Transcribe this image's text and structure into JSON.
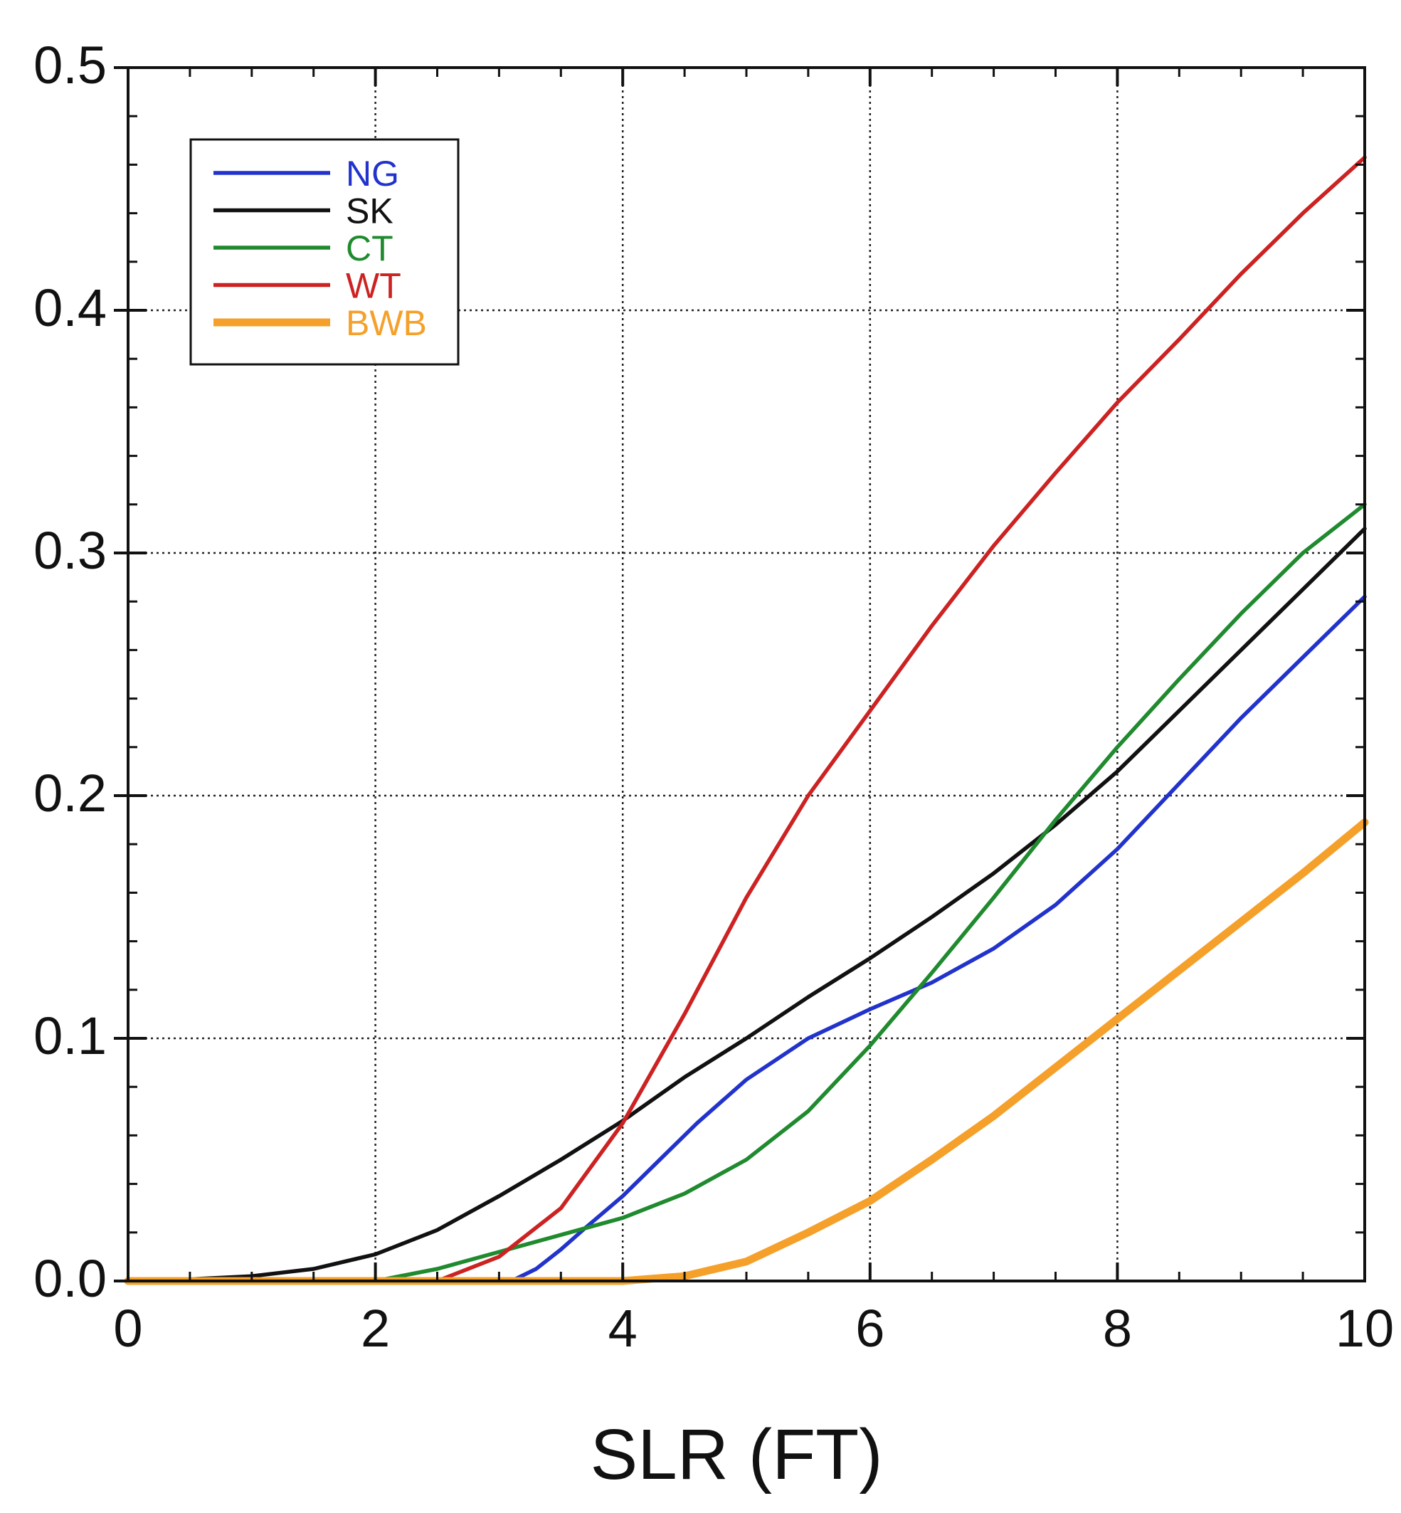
{
  "chart_data": {
    "type": "line",
    "title": "",
    "xlabel": "SLR (FT)",
    "ylabel": "",
    "xlim": [
      0,
      10
    ],
    "ylim": [
      0,
      0.5
    ],
    "x_ticks": [
      0,
      2,
      4,
      6,
      8,
      10
    ],
    "x_tick_labels": [
      "0",
      "2",
      "4",
      "6",
      "8",
      "10"
    ],
    "y_ticks": [
      0.0,
      0.1,
      0.2,
      0.3,
      0.4,
      0.5
    ],
    "y_tick_labels": [
      "0.0",
      "0.1",
      "0.2",
      "0.3",
      "0.4",
      "0.5"
    ],
    "grid": true,
    "legend_position": "top-left",
    "series": [
      {
        "name": "NG",
        "color": "#2233cc",
        "line_weight": "normal",
        "x": [
          3.1,
          3.3,
          3.5,
          3.7,
          4.0,
          4.3,
          4.6,
          5.0,
          5.5,
          6.0,
          6.5,
          7.0,
          7.5,
          8.0,
          8.5,
          9.0,
          9.5,
          10.0
        ],
        "y": [
          0.0,
          0.005,
          0.013,
          0.022,
          0.035,
          0.05,
          0.065,
          0.083,
          0.1,
          0.112,
          0.123,
          0.137,
          0.155,
          0.178,
          0.205,
          0.232,
          0.257,
          0.282
        ]
      },
      {
        "name": "SK",
        "color": "#111111",
        "line_weight": "normal",
        "x": [
          0.2,
          1.0,
          1.5,
          2.0,
          2.5,
          3.0,
          3.5,
          4.0,
          4.5,
          5.0,
          5.5,
          6.0,
          6.5,
          7.0,
          7.5,
          8.0,
          8.5,
          9.0,
          9.5,
          10.0
        ],
        "y": [
          0.0,
          0.002,
          0.005,
          0.011,
          0.021,
          0.035,
          0.05,
          0.066,
          0.084,
          0.1,
          0.117,
          0.133,
          0.15,
          0.168,
          0.188,
          0.21,
          0.235,
          0.26,
          0.285,
          0.31
        ]
      },
      {
        "name": "CT",
        "color": "#1f8a2e",
        "line_weight": "normal",
        "x": [
          2.0,
          2.5,
          3.0,
          3.5,
          4.0,
          4.5,
          5.0,
          5.5,
          6.0,
          6.5,
          7.0,
          7.5,
          8.0,
          8.5,
          9.0,
          9.5,
          10.0
        ],
        "y": [
          0.0,
          0.005,
          0.012,
          0.019,
          0.026,
          0.036,
          0.05,
          0.07,
          0.097,
          0.127,
          0.158,
          0.19,
          0.22,
          0.248,
          0.275,
          0.3,
          0.32
        ]
      },
      {
        "name": "WT",
        "color": "#cc2222",
        "line_weight": "normal",
        "x": [
          2.5,
          3.0,
          3.5,
          4.0,
          4.5,
          5.0,
          5.5,
          6.0,
          6.5,
          7.0,
          7.5,
          8.0,
          8.5,
          9.0,
          9.5,
          10.0
        ],
        "y": [
          0.0,
          0.01,
          0.03,
          0.065,
          0.11,
          0.158,
          0.2,
          0.235,
          0.27,
          0.303,
          0.333,
          0.362,
          0.388,
          0.415,
          0.44,
          0.463
        ]
      },
      {
        "name": "BWB",
        "color": "#f5a02a",
        "line_weight": "thick",
        "x": [
          0.0,
          4.0,
          4.5,
          5.0,
          5.5,
          6.0,
          6.5,
          7.0,
          7.5,
          8.0,
          8.5,
          9.0,
          9.5,
          10.0
        ],
        "y": [
          0.0,
          0.0,
          0.002,
          0.008,
          0.02,
          0.033,
          0.05,
          0.068,
          0.088,
          0.108,
          0.128,
          0.148,
          0.168,
          0.189
        ]
      }
    ]
  }
}
